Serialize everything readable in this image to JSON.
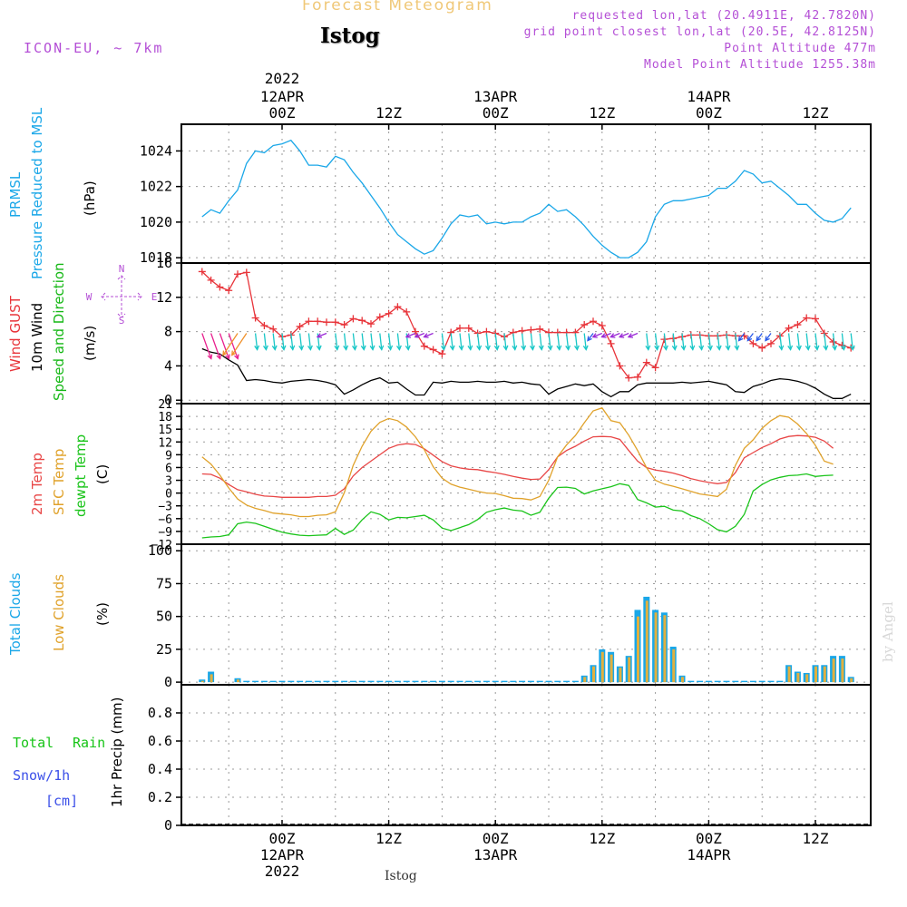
{
  "header": {
    "title": "Forecast Meteogram",
    "station": "Istog",
    "model": "ICON-EU, ~ 7km",
    "requested": "requested lon,lat (20.4911E, 42.7820N)",
    "grid_point": "grid point closest lon,lat (20.5E, 42.8125N)",
    "point_altitude": "Point Altitude 477m",
    "model_altitude": "Model Point Altitude 1255.38m"
  },
  "footer": {
    "station": "Istog",
    "credit": "by Angel"
  },
  "top_axis": {
    "year": "2022",
    "ticks": [
      {
        "hour": 0,
        "lines": [
          "12APR",
          "00Z"
        ]
      },
      {
        "hour": 12,
        "lines": [
          "12Z"
        ]
      },
      {
        "hour": 24,
        "lines": [
          "13APR",
          "00Z"
        ]
      },
      {
        "hour": 36,
        "lines": [
          "12Z"
        ]
      },
      {
        "hour": 48,
        "lines": [
          "14APR",
          "00Z"
        ]
      },
      {
        "hour": 60,
        "lines": [
          "12Z"
        ]
      }
    ]
  },
  "bottom_axis": {
    "year": "2022",
    "ticks": [
      {
        "hour": 0,
        "lines": [
          "00Z",
          "12APR"
        ]
      },
      {
        "hour": 12,
        "lines": [
          "12Z"
        ]
      },
      {
        "hour": 24,
        "lines": [
          "00Z",
          "13APR"
        ]
      },
      {
        "hour": 36,
        "lines": [
          "12Z"
        ]
      },
      {
        "hour": 48,
        "lines": [
          "00Z",
          "14APR"
        ]
      },
      {
        "hour": 60,
        "lines": [
          "12Z"
        ]
      }
    ]
  },
  "colors": {
    "pressure": "#1aa7e8",
    "gust": "#e8343a",
    "wind": "#000000",
    "wind_dir": "#17b817",
    "temp2m": "#e84646",
    "sfc": "#e0a22b",
    "dewpt": "#1ac41a",
    "total_clouds": "#1aa7e8",
    "low_clouds": "#e0b040",
    "rain": "#17c417",
    "snow": "#3b4fe8",
    "compass": "#b44fd6",
    "title": "#f0c878"
  },
  "panel_labels": {
    "pressure": [
      "PRMSL",
      "Pressure Reduced to MSL",
      "(hPa)"
    ],
    "wind": [
      "Wind GUST",
      "10m Wind",
      "Speed and Direction",
      "(m/s)"
    ],
    "compass": [
      "N",
      "S",
      "W",
      "E"
    ],
    "temp": [
      "2m Temp",
      "SFC Temp",
      "dewpt Temp",
      "(C)"
    ],
    "clouds": [
      "Total Clouds",
      "Low Clouds",
      "(%)"
    ],
    "precip": [
      "Total",
      "Rain",
      "Snow/1h",
      "[cm]",
      "1hr Precip (mm)"
    ]
  },
  "chart_data": [
    {
      "type": "line",
      "panel": "pressure",
      "ylabel": "(hPa)",
      "ylim": [
        1017.7,
        1025.5
      ],
      "yticks": [
        1018,
        1020,
        1022,
        1024
      ],
      "x_hours": [
        -9,
        -8,
        -7,
        -6,
        -5,
        -4,
        -3,
        -2,
        -1,
        0,
        1,
        2,
        3,
        4,
        5,
        6,
        7,
        8,
        9,
        10,
        11,
        12,
        13,
        14,
        15,
        16,
        17,
        18,
        19,
        20,
        21,
        22,
        23,
        24,
        25,
        26,
        27,
        28,
        29,
        30,
        31,
        32,
        33,
        34,
        35,
        36,
        37,
        38,
        39,
        40,
        41,
        42,
        43,
        44,
        45,
        46,
        47,
        48,
        49,
        50,
        51,
        52,
        53,
        54,
        55,
        56,
        57,
        58,
        59,
        60,
        61,
        62,
        63,
        64
      ],
      "series": [
        {
          "name": "PRMSL",
          "color": "#1aa7e8",
          "values": [
            1020.3,
            1020.7,
            1020.5,
            1021.2,
            1021.8,
            1023.3,
            1024.0,
            1023.9,
            1024.3,
            1024.4,
            1024.6,
            1024.0,
            1023.2,
            1023.2,
            1023.1,
            1023.7,
            1023.5,
            1022.8,
            1022.2,
            1021.5,
            1020.8,
            1020.0,
            1019.3,
            1018.9,
            1018.5,
            1018.2,
            1018.4,
            1019.1,
            1019.9,
            1020.4,
            1020.3,
            1020.4,
            1019.9,
            1020.0,
            1019.9,
            1020.0,
            1020.0,
            1020.3,
            1020.5,
            1021.0,
            1020.6,
            1020.7,
            1020.3,
            1019.8,
            1019.2,
            1018.7,
            1018.3,
            1018.0,
            1018.0,
            1018.3,
            1018.9,
            1020.3,
            1021.0,
            1021.2,
            1021.2,
            1021.3,
            1021.4,
            1021.5,
            1021.9,
            1021.9,
            1022.3,
            1022.9,
            1022.7,
            1022.2,
            1022.3,
            1021.9,
            1021.5,
            1021.0,
            1021.0,
            1020.5,
            1020.1,
            1020.0,
            1020.2,
            1020.8
          ]
        }
      ]
    },
    {
      "type": "line",
      "panel": "wind",
      "ylabel": "(m/s)",
      "ylim": [
        -0.4,
        16
      ],
      "yticks": [
        0,
        4,
        8,
        12,
        16
      ],
      "x_hours": [
        -9,
        -8,
        -7,
        -6,
        -5,
        -4,
        -3,
        -2,
        -1,
        0,
        1,
        2,
        3,
        4,
        5,
        6,
        7,
        8,
        9,
        10,
        11,
        12,
        13,
        14,
        15,
        16,
        17,
        18,
        19,
        20,
        21,
        22,
        23,
        24,
        25,
        26,
        27,
        28,
        29,
        30,
        31,
        32,
        33,
        34,
        35,
        36,
        37,
        38,
        39,
        40,
        41,
        42,
        43,
        44,
        45,
        46,
        47,
        48,
        49,
        50,
        51,
        52,
        53,
        54,
        55,
        56,
        57,
        58,
        59,
        60,
        61,
        62,
        63,
        64
      ],
      "series": [
        {
          "name": "Wind GUST",
          "color": "#e8343a",
          "values": [
            15.0,
            14.0,
            13.2,
            12.8,
            14.7,
            14.9,
            9.6,
            8.7,
            8.3,
            7.4,
            7.6,
            8.6,
            9.2,
            9.2,
            9.1,
            9.1,
            8.8,
            9.5,
            9.3,
            8.9,
            9.7,
            10.1,
            10.9,
            10.3,
            8.0,
            6.3,
            5.9,
            5.4,
            7.9,
            8.4,
            8.4,
            7.8,
            8.0,
            7.8,
            7.4,
            7.9,
            8.1,
            8.2,
            8.3,
            7.9,
            7.9,
            7.9,
            7.9,
            8.8,
            9.2,
            8.7,
            6.6,
            4.0,
            2.6,
            2.7,
            4.4,
            3.8,
            7.1,
            7.2,
            7.4,
            7.6,
            7.6,
            7.5,
            7.5,
            7.6,
            7.5,
            7.5,
            6.6,
            6.1,
            6.6,
            7.5,
            8.4,
            8.8,
            9.6,
            9.5,
            7.8,
            6.8,
            6.4,
            6.1
          ]
        },
        {
          "name": "10m Wind",
          "color": "#000000",
          "values": [
            6.0,
            5.6,
            5.4,
            4.7,
            4.1,
            2.3,
            2.4,
            2.3,
            2.1,
            2.0,
            2.2,
            2.3,
            2.4,
            2.3,
            2.1,
            1.8,
            0.7,
            1.2,
            1.8,
            2.3,
            2.6,
            2.0,
            2.1,
            1.3,
            0.6,
            0.6,
            2.1,
            2.0,
            2.2,
            2.1,
            2.1,
            2.2,
            2.1,
            2.1,
            2.2,
            2.0,
            2.1,
            1.9,
            1.8,
            0.7,
            1.3,
            1.6,
            1.9,
            1.7,
            1.9,
            1.0,
            0.4,
            1.0,
            1.0,
            1.8,
            2.0,
            2.0,
            2.0,
            2.0,
            2.1,
            2.0,
            2.1,
            2.2,
            2.0,
            1.8,
            1.0,
            0.9,
            1.6,
            1.9,
            2.3,
            2.5,
            2.4,
            2.2,
            1.9,
            1.4,
            0.7,
            0.2,
            0.2,
            0.7
          ]
        }
      ],
      "arrows_y": 7.8,
      "arrow_colors": [
        {
          "from": -9,
          "to": -5,
          "color": "#e8208e"
        },
        {
          "from": -5,
          "to": -3,
          "color": "#f0902a"
        },
        {
          "from": -3,
          "to": 5,
          "color": "#19c7c7"
        },
        {
          "from": 5,
          "to": 6,
          "color": "#9a2ad6"
        },
        {
          "from": 6,
          "to": 15,
          "color": "#19c7c7"
        },
        {
          "from": 15,
          "to": 18,
          "color": "#9a2ad6"
        },
        {
          "from": 18,
          "to": 35,
          "color": "#19c7c7"
        },
        {
          "from": 35,
          "to": 36,
          "color": "#2a5ae8"
        },
        {
          "from": 36,
          "to": 41,
          "color": "#9a2ad6"
        },
        {
          "from": 41,
          "to": 52,
          "color": "#19c7c7"
        },
        {
          "from": 52,
          "to": 56,
          "color": "#2a5ae8"
        },
        {
          "from": 56,
          "to": 64,
          "color": "#19c7c7"
        }
      ]
    },
    {
      "type": "line",
      "panel": "temp",
      "ylabel": "(C)",
      "ylim": [
        -12,
        21
      ],
      "yticks": [
        -12,
        -9,
        -6,
        -3,
        0,
        3,
        6,
        9,
        12,
        15,
        18,
        21
      ],
      "x_hours": [
        -9,
        -8,
        -7,
        -6,
        -5,
        -4,
        -3,
        -2,
        -1,
        0,
        1,
        2,
        3,
        4,
        5,
        6,
        7,
        8,
        9,
        10,
        11,
        12,
        13,
        14,
        15,
        16,
        17,
        18,
        19,
        20,
        21,
        22,
        23,
        24,
        25,
        26,
        27,
        28,
        29,
        30,
        31,
        32,
        33,
        34,
        35,
        36,
        37,
        38,
        39,
        40,
        41,
        42,
        43,
        44,
        45,
        46,
        47,
        48,
        49,
        50,
        51,
        52,
        53,
        54,
        55,
        56,
        57,
        58,
        59,
        60,
        61,
        62,
        63,
        64
      ],
      "series": [
        {
          "name": "2m Temp",
          "color": "#e84646",
          "values": [
            4.5,
            4.4,
            3.5,
            2.0,
            0.8,
            0.3,
            -0.3,
            -0.7,
            -0.8,
            -1.0,
            -1.0,
            -1.0,
            -1.0,
            -0.8,
            -0.8,
            -0.5,
            1.0,
            4.0,
            6.0,
            7.5,
            9.0,
            10.5,
            11.3,
            11.6,
            11.4,
            10.4,
            8.9,
            7.4,
            6.4,
            5.9,
            5.6,
            5.5,
            5.1,
            4.8,
            4.4,
            3.9,
            3.5,
            3.2,
            3.3,
            5.5,
            8.5,
            10.0,
            11.0,
            12.2,
            13.2,
            13.3,
            13.2,
            12.6,
            10.0,
            7.5,
            6.0,
            5.4,
            5.1,
            4.7,
            4.1,
            3.4,
            2.9,
            2.5,
            2.2,
            2.5,
            4.8,
            8.3,
            9.5,
            10.7,
            11.6,
            12.7,
            13.3,
            13.5,
            13.4,
            13.1,
            12.2,
            10.5
          ]
        },
        {
          "name": "SFC Temp",
          "color": "#e0a22b",
          "values": [
            8.5,
            6.8,
            4.2,
            1.2,
            -1.4,
            -2.8,
            -3.6,
            -4.1,
            -4.7,
            -4.9,
            -5.1,
            -5.5,
            -5.5,
            -5.2,
            -5.1,
            -4.4,
            0.1,
            6.5,
            11.0,
            14.5,
            16.6,
            17.5,
            17.0,
            15.5,
            13.2,
            10.2,
            6.2,
            3.5,
            2.1,
            1.4,
            0.9,
            0.4,
            0.0,
            -0.1,
            -0.6,
            -1.2,
            -1.3,
            -1.6,
            -0.8,
            3.0,
            8.5,
            11.3,
            13.5,
            16.5,
            19.3,
            20.0,
            17.0,
            16.5,
            13.6,
            10.0,
            6.0,
            3.0,
            2.1,
            1.6,
            1.0,
            0.4,
            -0.2,
            -0.5,
            -0.8,
            0.9,
            6.5,
            10.5,
            12.5,
            15.2,
            17.0,
            18.2,
            17.8,
            16.2,
            14.0,
            11.2,
            7.5,
            6.8
          ]
        },
        {
          "name": "dewpt Temp",
          "color": "#1ac41a",
          "values": [
            -10.5,
            -10.3,
            -10.2,
            -9.8,
            -7.2,
            -6.8,
            -7.1,
            -7.8,
            -8.5,
            -9.2,
            -9.6,
            -9.9,
            -10.0,
            -9.9,
            -9.8,
            -8.3,
            -9.7,
            -8.7,
            -6.3,
            -4.4,
            -5.0,
            -6.3,
            -5.7,
            -5.8,
            -5.5,
            -5.2,
            -6.3,
            -8.2,
            -8.8,
            -8.1,
            -7.4,
            -6.2,
            -4.5,
            -3.9,
            -3.5,
            -4.0,
            -4.2,
            -5.2,
            -4.5,
            -1.2,
            1.3,
            1.4,
            1.1,
            -0.2,
            0.5,
            1.0,
            1.5,
            2.2,
            1.8,
            -1.5,
            -2.3,
            -3.3,
            -3.1,
            -4.0,
            -4.2,
            -5.3,
            -6.0,
            -7.2,
            -8.6,
            -9.1,
            -7.8,
            -5.0,
            0.5,
            2.0,
            3.1,
            3.7,
            4.1,
            4.2,
            4.5,
            3.9,
            4.1,
            4.2
          ]
        }
      ]
    },
    {
      "type": "bar",
      "panel": "clouds",
      "ylabel": "(%)",
      "ylim": [
        -2,
        105
      ],
      "yticks": [
        0,
        25,
        50,
        75,
        100
      ],
      "x_hours": [
        -9,
        -8,
        -7,
        -6,
        -5,
        -4,
        -3,
        -2,
        -1,
        0,
        1,
        2,
        3,
        4,
        5,
        6,
        7,
        8,
        9,
        10,
        11,
        12,
        13,
        14,
        15,
        16,
        17,
        18,
        19,
        20,
        21,
        22,
        23,
        24,
        25,
        26,
        27,
        28,
        29,
        30,
        31,
        32,
        33,
        34,
        35,
        36,
        37,
        38,
        39,
        40,
        41,
        42,
        43,
        44,
        45,
        46,
        47,
        48,
        49,
        50,
        51,
        52,
        53,
        54,
        55,
        56,
        57,
        58,
        59,
        60,
        61,
        62,
        63,
        64
      ],
      "series": [
        {
          "name": "Total Clouds",
          "color": "#1aa7e8",
          "values": [
            2,
            8,
            0,
            0,
            3,
            1,
            1,
            1,
            1,
            1,
            1,
            1,
            1,
            1,
            1,
            1,
            1,
            1,
            1,
            1,
            1,
            1,
            1,
            1,
            1,
            1,
            1,
            1,
            1,
            1,
            1,
            1,
            1,
            1,
            1,
            1,
            1,
            1,
            1,
            1,
            1,
            1,
            1,
            5,
            13,
            25,
            23,
            12,
            20,
            55,
            65,
            55,
            53,
            27,
            5,
            1,
            1,
            1,
            1,
            1,
            1,
            1,
            1,
            1,
            1,
            1,
            13,
            8,
            7,
            13,
            13,
            20,
            20,
            4
          ]
        },
        {
          "name": "Low Clouds",
          "color": "#e0b040",
          "values": [
            1,
            6,
            0,
            0,
            2,
            0,
            0,
            0,
            0,
            0,
            0,
            0,
            0,
            0,
            0,
            0,
            0,
            0,
            0,
            0,
            0,
            0,
            0,
            0,
            0,
            0,
            0,
            0,
            0,
            0,
            0,
            0,
            0,
            0,
            0,
            0,
            0,
            0,
            0,
            0,
            0,
            0,
            0,
            4,
            12,
            23,
            21,
            11,
            19,
            50,
            62,
            53,
            51,
            25,
            4,
            0,
            0,
            0,
            0,
            0,
            0,
            0,
            0,
            0,
            0,
            0,
            12,
            7,
            6,
            12,
            12,
            18,
            18,
            3
          ]
        }
      ]
    },
    {
      "type": "bar",
      "panel": "precip",
      "ylabel": "1hr Precip (mm)",
      "ylim": [
        0,
        1.0
      ],
      "yticks": [
        0,
        0.2,
        0.4,
        0.6,
        0.8
      ],
      "yticklabels": [
        "0",
        "0.2",
        "0.4",
        "0.6",
        "0.8"
      ],
      "series": [
        {
          "name": "Total Rain",
          "color": "#17c417",
          "values": []
        },
        {
          "name": "Snow/1h",
          "color": "#3b4fe8",
          "values": []
        }
      ]
    }
  ]
}
